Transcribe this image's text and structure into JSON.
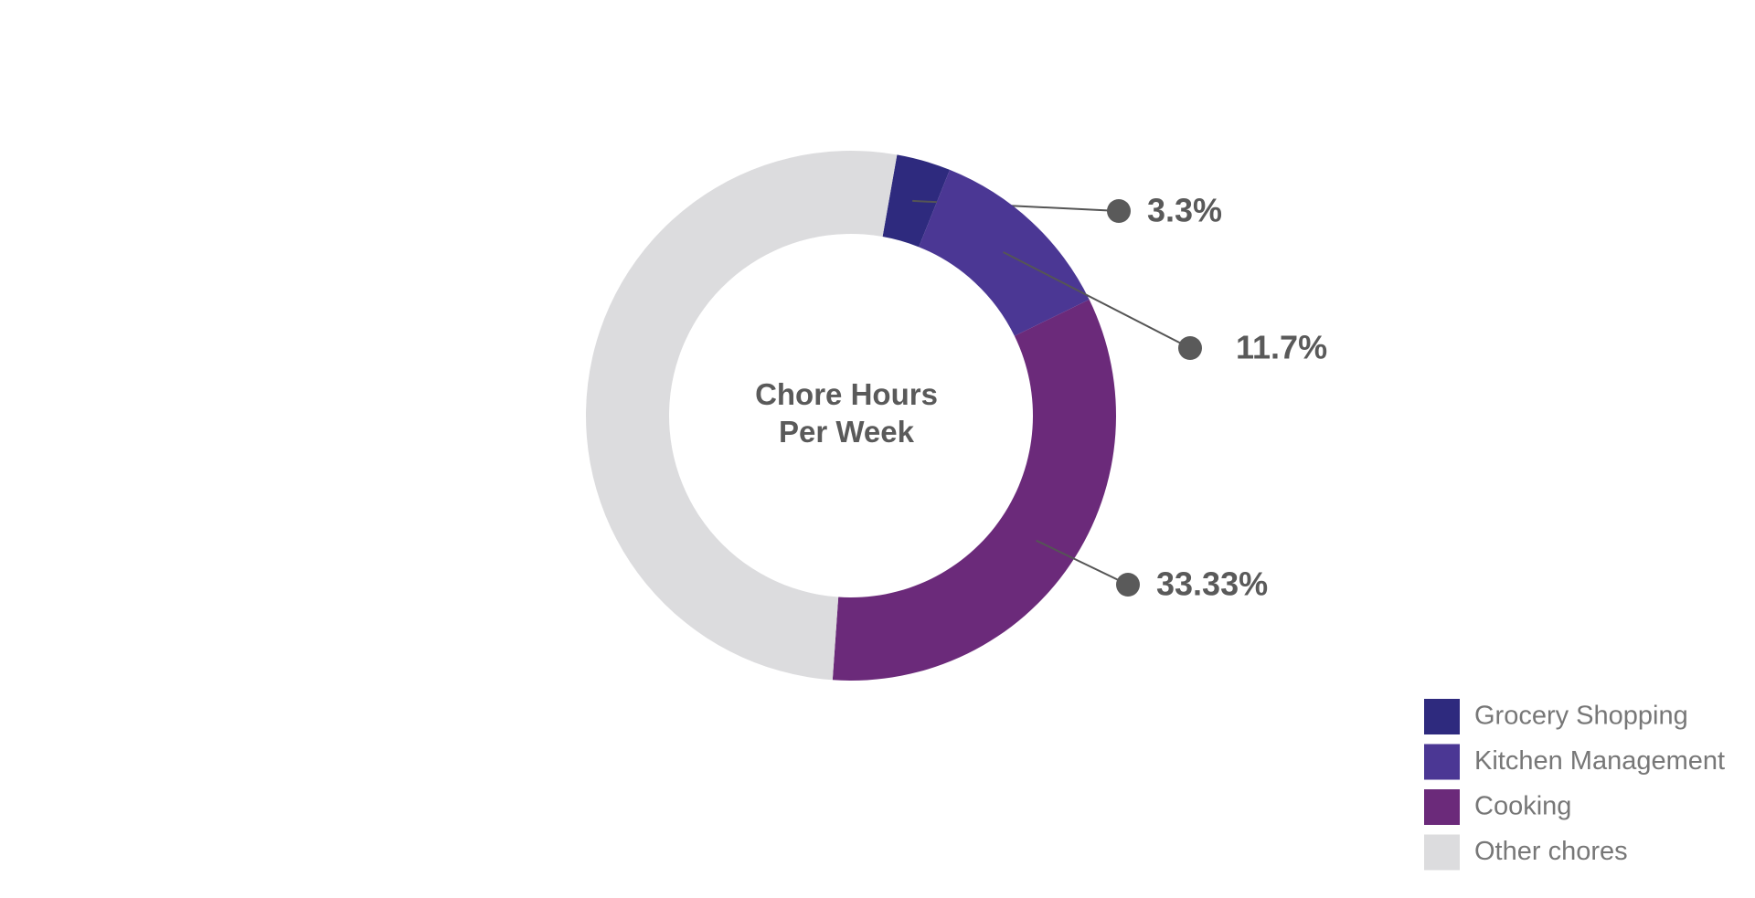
{
  "chart_data": {
    "type": "donut",
    "title": "Chore Hours Per Week",
    "categories": [
      "Grocery Shopping",
      "Kitchen Management",
      "Cooking",
      "Other chores"
    ],
    "values": [
      3.3,
      11.7,
      33.33,
      51.67
    ],
    "value_labels": [
      "3.3%",
      "11.7%",
      "33.33%",
      null
    ],
    "colors": [
      "#2e2a7e",
      "#4b3794",
      "#6b2a7a",
      "#dcdcde"
    ],
    "legend": "bottom-right"
  }
}
